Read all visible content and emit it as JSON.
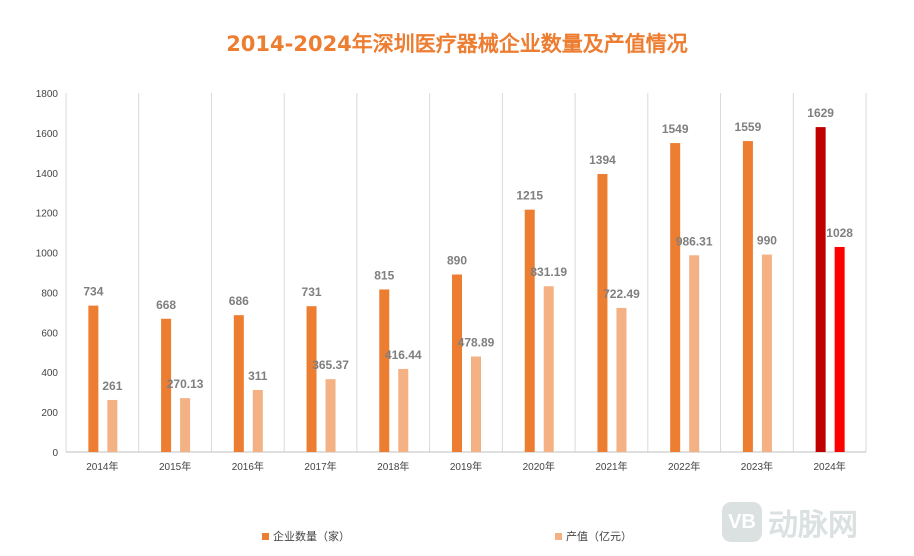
{
  "chart_data": {
    "type": "bar",
    "title": "2014-2024年深圳医疗器械企业数量及产值情况",
    "categories": [
      "2014年",
      "2015年",
      "2016年",
      "2017年",
      "2018年",
      "2019年",
      "2020年",
      "2021年",
      "2022年",
      "2023年",
      "2024年"
    ],
    "series": [
      {
        "name": "企业数量（家）",
        "color": "#ED7D31",
        "highlight_color": "#C00000",
        "values": [
          734,
          668,
          686,
          731,
          815,
          890,
          1215,
          1394,
          1549,
          1559,
          1629
        ],
        "labels": [
          "734",
          "668",
          "686",
          "731",
          "815",
          "890",
          "1215",
          "1394",
          "1549",
          "1559",
          "1629"
        ]
      },
      {
        "name": "产值（亿元）",
        "color": "#F4B183",
        "highlight_color": "#FF0000",
        "values": [
          261,
          270.13,
          311,
          365.37,
          416.44,
          478.89,
          831.19,
          722.49,
          986.31,
          990,
          1028
        ],
        "labels": [
          "261",
          "270.13",
          "311",
          "365.37",
          "416.44",
          "478.89",
          "831.19",
          "722.49",
          "986.31",
          "990",
          "1028"
        ]
      }
    ],
    "highlight_category": "2024年",
    "ylim": [
      0,
      1800
    ],
    "yticks": [
      0,
      200,
      400,
      600,
      800,
      1000,
      1200,
      1400,
      1600,
      1800
    ],
    "grid": "vertical category separators",
    "legend": "bottom"
  },
  "watermark": "动脉网"
}
